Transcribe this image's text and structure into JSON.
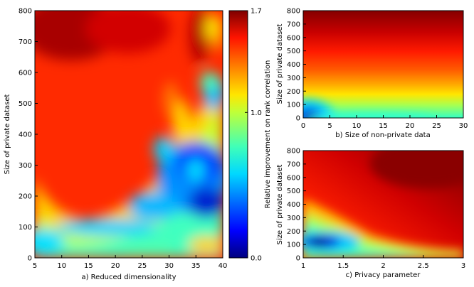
{
  "chart_data": [
    {
      "type": "heatmap",
      "id": "a",
      "xlabel": "a) Reduced dimensionality",
      "ylabel": "Size of private dataset",
      "xlim": [
        5,
        40
      ],
      "ylim": [
        0,
        800
      ],
      "xticks": [
        "5",
        "10",
        "15",
        "20",
        "25",
        "30",
        "35",
        "40"
      ],
      "yticks": [
        "0",
        "100",
        "200",
        "300",
        "400",
        "500",
        "600",
        "700",
        "800"
      ],
      "grid": false
    },
    {
      "type": "heatmap",
      "id": "b",
      "xlabel": "b) Size of non-private data",
      "ylabel": "Size of private dataset",
      "xlim": [
        0,
        30
      ],
      "ylim": [
        0,
        800
      ],
      "xticks": [
        "0",
        "5",
        "10",
        "15",
        "20",
        "25",
        "30"
      ],
      "yticks": [
        "0",
        "100",
        "200",
        "300",
        "400",
        "500",
        "600",
        "700",
        "800"
      ],
      "grid": false
    },
    {
      "type": "heatmap",
      "id": "c",
      "xlabel": "c) Privacy parameter",
      "ylabel": "Size of private dataset",
      "xlim": [
        1,
        3
      ],
      "ylim": [
        0,
        800
      ],
      "xticks": [
        "1",
        "1.5",
        "2",
        "2.5",
        "3"
      ],
      "yticks": [
        "0",
        "100",
        "200",
        "300",
        "400",
        "500",
        "600",
        "700",
        "800"
      ],
      "grid": false
    }
  ],
  "colorbar": {
    "label": "Relative improvement on rank correlation",
    "range": [
      0.0,
      1.7
    ],
    "ticks": [
      "0.0",
      "1.0",
      "1.7"
    ],
    "colormap": "jet"
  }
}
